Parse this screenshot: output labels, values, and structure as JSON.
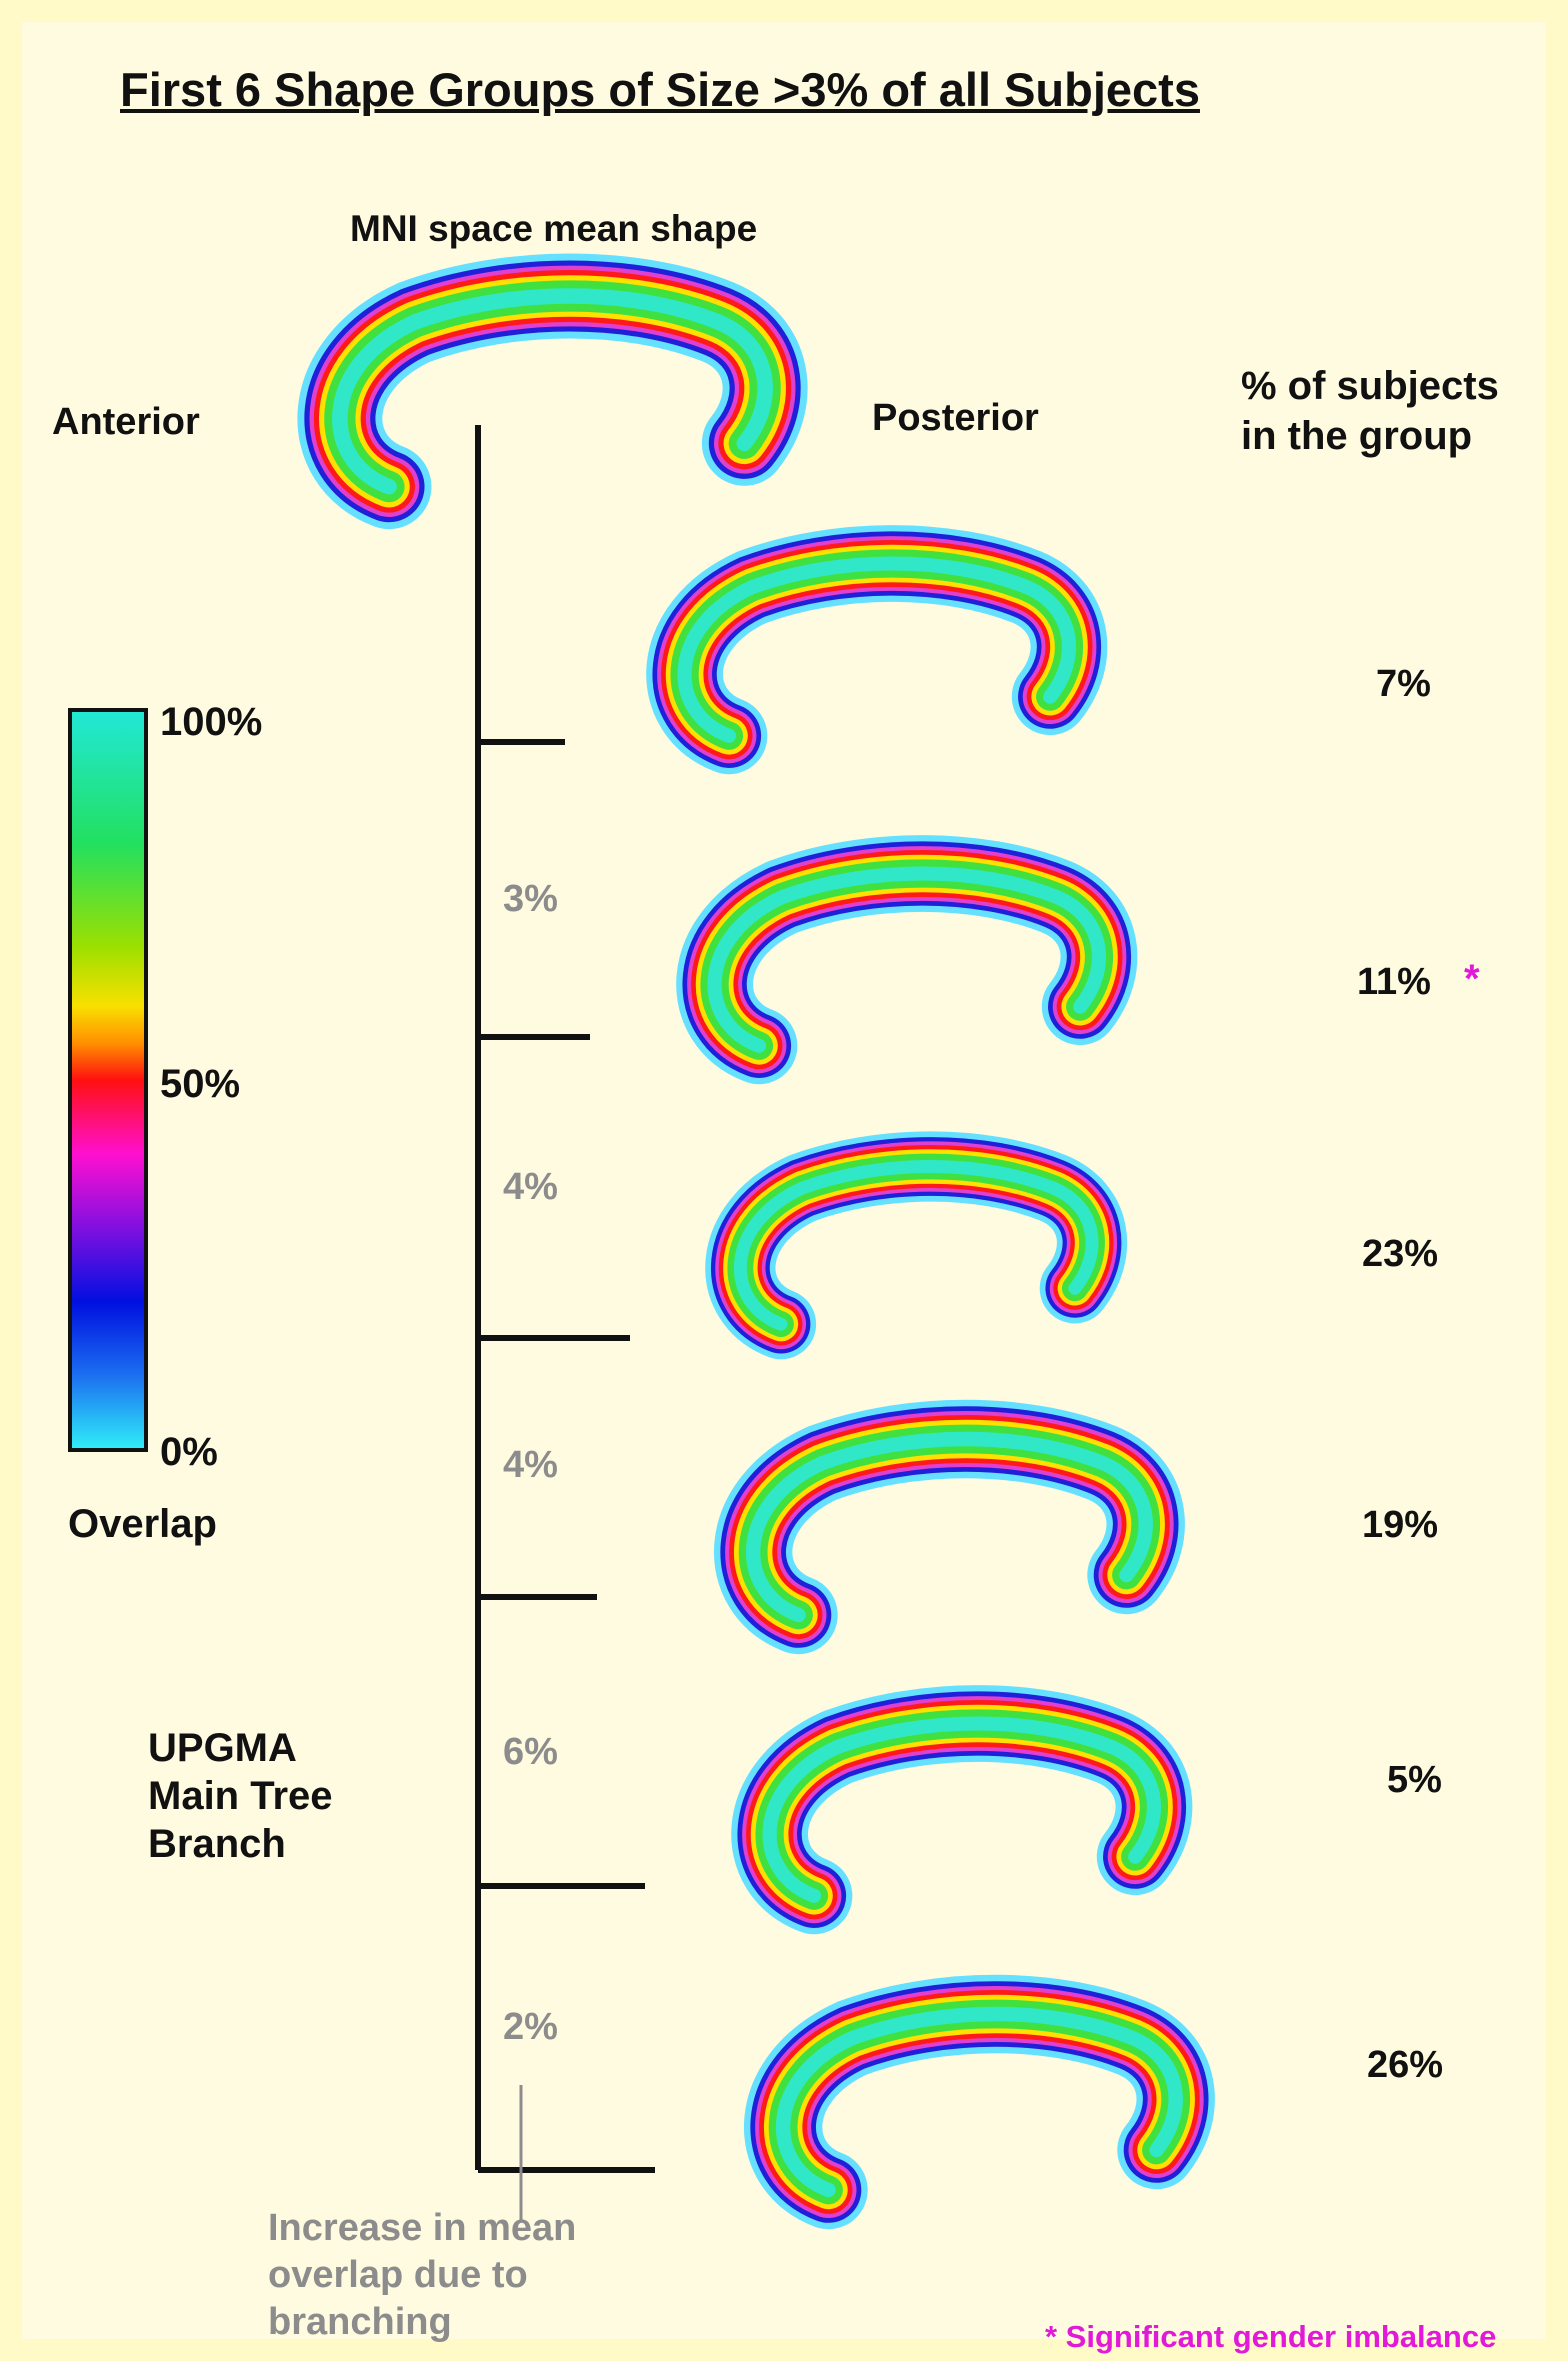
{
  "title": "First 6 Shape Groups of Size >3% of all Subjects",
  "mean_shape_label": "MNI space mean shape",
  "orientation": {
    "anterior": "Anterior",
    "posterior": "Posterior"
  },
  "column_header": {
    "line1": "% of subjects",
    "line2": "in the group"
  },
  "colorbar": {
    "ticks": {
      "top": "100%",
      "middle": "50%",
      "bottom": "0%"
    },
    "caption": "Overlap"
  },
  "tree": {
    "line1": "UPGMA",
    "line2": "Main Tree",
    "line3": "Branch",
    "gains": [
      "3%",
      "4%",
      "4%",
      "6%",
      "2%"
    ],
    "note": {
      "line1": "Increase in mean",
      "line2": "overlap due to",
      "line3": "branching"
    }
  },
  "groups": [
    {
      "percent": "7%"
    },
    {
      "percent": "11%",
      "star": "*"
    },
    {
      "percent": "23%"
    },
    {
      "percent": "19%"
    },
    {
      "percent": "5%"
    },
    {
      "percent": "26%"
    }
  ],
  "footnote": "* Significant gender imbalance",
  "colors": {
    "background": "#fffbe0",
    "highlight": "#e01ad8",
    "muted_text": "#8c8c8c"
  }
}
